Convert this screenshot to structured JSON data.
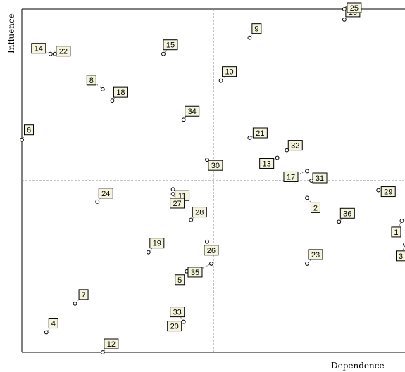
{
  "chart_data": {
    "type": "scatter",
    "title": "",
    "xlabel": "Dependence",
    "ylabel": "Influence",
    "xlim": [
      0,
      36
    ],
    "ylim": [
      0,
      36
    ],
    "midline_x": 18,
    "midline_y": 18,
    "grid": false,
    "points": [
      {
        "label": "1",
        "x": 35.7,
        "y": 13.8
      },
      {
        "label": "2",
        "x": 26.8,
        "y": 16.2
      },
      {
        "label": "3",
        "x": 36.0,
        "y": 11.3
      },
      {
        "label": "4",
        "x": 2.3,
        "y": 2.1
      },
      {
        "label": "5",
        "x": 15.5,
        "y": 8.5
      },
      {
        "label": "6",
        "x": 0.0,
        "y": 22.3
      },
      {
        "label": "7",
        "x": 5.0,
        "y": 5.1
      },
      {
        "label": "8",
        "x": 7.6,
        "y": 27.6
      },
      {
        "label": "9",
        "x": 21.4,
        "y": 33.0
      },
      {
        "label": "10",
        "x": 18.7,
        "y": 28.5
      },
      {
        "label": "11",
        "x": 14.2,
        "y": 17.1
      },
      {
        "label": "12",
        "x": 7.6,
        "y": 0.0
      },
      {
        "label": "13",
        "x": 24.0,
        "y": 20.4
      },
      {
        "label": "14",
        "x": 2.7,
        "y": 31.3
      },
      {
        "label": "15",
        "x": 13.3,
        "y": 31.3
      },
      {
        "label": "16",
        "x": 30.3,
        "y": 34.9
      },
      {
        "label": "17",
        "x": 26.8,
        "y": 19.0
      },
      {
        "label": "18",
        "x": 8.5,
        "y": 26.4
      },
      {
        "label": "19",
        "x": 11.9,
        "y": 10.5
      },
      {
        "label": "20",
        "x": 15.2,
        "y": 3.2
      },
      {
        "label": "21",
        "x": 21.4,
        "y": 22.5
      },
      {
        "label": "22",
        "x": 3.1,
        "y": 31.3
      },
      {
        "label": "23",
        "x": 26.8,
        "y": 9.3
      },
      {
        "label": "24",
        "x": 7.1,
        "y": 15.8
      },
      {
        "label": "25",
        "x": 30.3,
        "y": 36.0
      },
      {
        "label": "26",
        "x": 17.4,
        "y": 11.6
      },
      {
        "label": "27",
        "x": 14.2,
        "y": 16.6
      },
      {
        "label": "28",
        "x": 15.9,
        "y": 13.9
      },
      {
        "label": "29",
        "x": 33.5,
        "y": 17.0
      },
      {
        "label": "30",
        "x": 17.4,
        "y": 20.2
      },
      {
        "label": "31",
        "x": 27.2,
        "y": 18.0
      },
      {
        "label": "32",
        "x": 24.9,
        "y": 21.2
      },
      {
        "label": "33",
        "x": 15.2,
        "y": 3.2
      },
      {
        "label": "34",
        "x": 15.2,
        "y": 24.4
      },
      {
        "label": "35",
        "x": 17.8,
        "y": 9.3
      },
      {
        "label": "36",
        "x": 29.8,
        "y": 13.7
      }
    ]
  }
}
